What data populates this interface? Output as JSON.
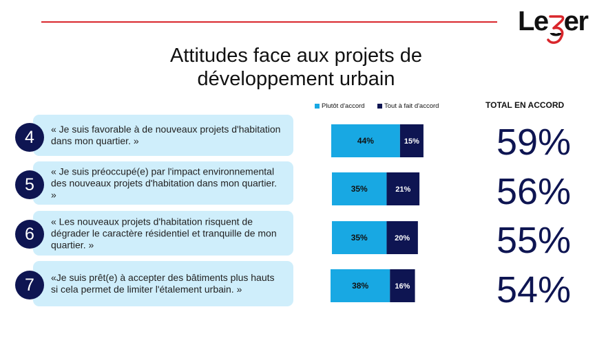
{
  "brand": {
    "logo_text": "Leger",
    "accent": "#d9262b"
  },
  "title_line1": "Attitudes face aux projets de",
  "title_line2": "développement urbain",
  "total_header": "TOTAL  EN ACCORD",
  "chart_data": {
    "type": "bar",
    "orientation": "horizontal",
    "stacked": true,
    "title": "Attitudes face aux projets de développement urbain",
    "categories": [
      "« Je suis favorable à de nouveaux projets d'habitation dans mon quartier. »",
      "« Je suis préoccupé(e) par l'impact environnemental des nouveaux projets d'habitation dans mon quartier. »",
      "« Les nouveaux projets d'habitation risquent de dégrader le caractère résidentiel et tranquille de mon quartier. »",
      "«Je suis prêt(e) à accepter des bâtiments plus hauts si cela permet de limiter l'étalement urbain. »"
    ],
    "series": [
      {
        "name": "Plutôt d'accord",
        "color": "#18a8e3",
        "values": [
          44,
          35,
          35,
          38
        ],
        "labels": [
          "44%",
          "35%",
          "35%",
          "38%"
        ]
      },
      {
        "name": "Tout à fait d'accord",
        "color": "#0e1552",
        "values": [
          15,
          21,
          20,
          16
        ],
        "labels": [
          "15%",
          "21%",
          "20%",
          "16%"
        ]
      }
    ],
    "xlim": [
      0,
      100
    ],
    "legend_position": "top"
  },
  "items": [
    {
      "number": "4",
      "statement": "« Je suis favorable à de nouveaux projets d'habitation dans mon quartier. »",
      "total": "59%"
    },
    {
      "number": "5",
      "statement": "« Je suis préoccupé(e) par l'impact environnemental des nouveaux projets d'habitation dans mon quartier. »",
      "total": "56%"
    },
    {
      "number": "6",
      "statement": "« Les nouveaux projets d'habitation risquent de dégrader le caractère résidentiel et tranquille de mon quartier. »",
      "total": "55%"
    },
    {
      "number": "7",
      "statement": "«Je suis prêt(e) à accepter des bâtiments plus hauts si cela permet de limiter l'étalement urbain. »",
      "total": "54%"
    }
  ]
}
